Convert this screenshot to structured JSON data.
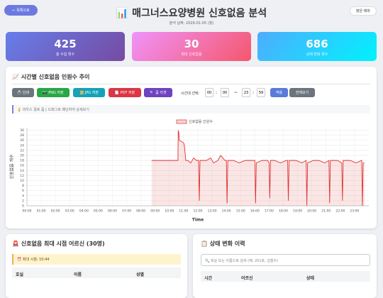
{
  "header": {
    "back_button": "← 목록으로",
    "title": "📊 매그너스요양병원 신호없음 분석",
    "subtitle": "분석 날짜: 2026-01-05 (월)",
    "theme_button": "밝은 테마"
  },
  "stats": [
    {
      "value": 425,
      "label": "총 수집 횟수"
    },
    {
      "value": 30,
      "label": "최대 신호없음"
    },
    {
      "value": 686,
      "label": "상태 변화 횟수"
    }
  ],
  "chart_panel": {
    "title": "📈 시간별 신호없음 인원수 추이",
    "buttons": [
      "🖨️ 인쇄",
      "📷 PNG 저장",
      "🖼️ JPG 저장",
      "📄 PDF 저장",
      "🔍 줌 리셋"
    ],
    "range_label": "시간대 선택:",
    "range": [
      "00",
      "00",
      "23",
      "59"
    ],
    "range_separators": [
      ":",
      "~",
      ":"
    ],
    "apply_button": "적용",
    "reset_button": "전체보기",
    "hint": "💡 마우스 휠로 줌 | 드래그로 패닝하여 상세보기"
  },
  "chart_data": {
    "type": "line",
    "xlabel": "Time",
    "ylabel": "신호없음 개수",
    "x": [
      8.75,
      10.6,
      10.62,
      10.66,
      10.7,
      11.0,
      11.05,
      11.15,
      11.3,
      11.5,
      11.7,
      11.9,
      12.05,
      12.1,
      12.15,
      12.6,
      12.9,
      13.1,
      13.4,
      13.6,
      13.9,
      14.0,
      14.05,
      14.1,
      14.5,
      14.9,
      15.3,
      15.8,
      16.0,
      16.05,
      16.1,
      16.5,
      16.9,
      17.0,
      17.05,
      17.1,
      17.4,
      17.8,
      18.2,
      18.3,
      18.35,
      18.4,
      18.9,
      19.3,
      19.6,
      19.65,
      19.7,
      20.1,
      20.5,
      20.9,
      21.2,
      21.25,
      21.3,
      21.8,
      22.1,
      22.15,
      22.2,
      22.7,
      23.1,
      23.5,
      23.55,
      23.6,
      23.7
    ],
    "series": [
      {
        "name": "신호없음 인원수",
        "color": "#e03131",
        "values": [
          18,
          18,
          30,
          29,
          26,
          25,
          24,
          18,
          18,
          17,
          19,
          18,
          18,
          2,
          18,
          18,
          19,
          17,
          18,
          20,
          18,
          18,
          1,
          18,
          18,
          17,
          18,
          18,
          18,
          1,
          17,
          18,
          18,
          17,
          3,
          18,
          18,
          17,
          18,
          18,
          2,
          18,
          18,
          17,
          18,
          0,
          17,
          18,
          18,
          17,
          18,
          1,
          18,
          18,
          17,
          2,
          18,
          18,
          17,
          18,
          0,
          17,
          17
        ]
      }
    ],
    "xlim": [
      0,
      24
    ],
    "ylim": [
      0,
      31
    ],
    "xticks": [
      {
        "value": 0,
        "label": "00:00"
      },
      {
        "value": 1,
        "label": "01:00"
      },
      {
        "value": 2,
        "label": "02:00"
      },
      {
        "value": 3,
        "label": "03:00"
      },
      {
        "value": 4,
        "label": "04:00"
      },
      {
        "value": 5,
        "label": "05:00"
      },
      {
        "value": 6,
        "label": "06:00"
      },
      {
        "value": 7,
        "label": "07:00"
      },
      {
        "value": 8,
        "label": "08:00"
      },
      {
        "value": 9,
        "label": "09:00"
      },
      {
        "value": 10,
        "label": "10:00"
      },
      {
        "value": 11,
        "label": "11:00"
      },
      {
        "value": 12,
        "label": "12:00"
      },
      {
        "value": 13,
        "label": "13:00"
      },
      {
        "value": 14,
        "label": "14:00"
      },
      {
        "value": 15,
        "label": "15:00"
      },
      {
        "value": 16,
        "label": "16:00"
      },
      {
        "value": 17,
        "label": "17:00"
      },
      {
        "value": 18,
        "label": "18:00"
      },
      {
        "value": 19,
        "label": "19:00"
      },
      {
        "value": 20,
        "label": "20:00"
      },
      {
        "value": 21,
        "label": "21:00"
      },
      {
        "value": 22,
        "label": "22:00"
      },
      {
        "value": 23,
        "label": "23:00"
      }
    ],
    "yticks": [
      0,
      2,
      4,
      6,
      8,
      10,
      12,
      14,
      16,
      18,
      20,
      22,
      24,
      26,
      28,
      30
    ],
    "grid": true,
    "legend": "top"
  },
  "peak_panel": {
    "title": "🚨 신호없음 최대 시점 어르신 (30명)",
    "peak_time": "⏰ 최대 시점: 10:44",
    "columns": [
      "호실",
      "이름",
      "성별"
    ]
  },
  "history_panel": {
    "title": "📋 상태 변화 이력",
    "search_placeholder": "🔍 호실 또는 이름으로 검색 (예: 201호, 김철수)",
    "columns": [
      "시간",
      "어르신",
      "상태"
    ]
  }
}
